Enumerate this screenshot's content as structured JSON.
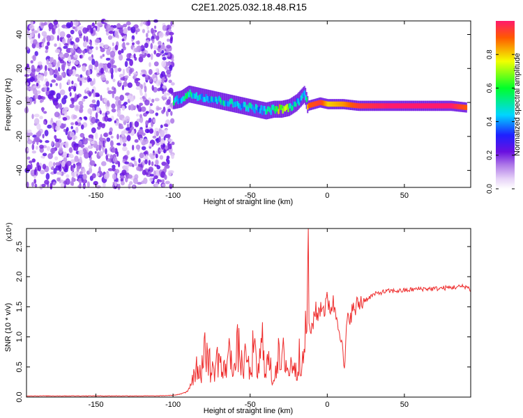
{
  "title": "C2E1.2025.032.18.48.R15",
  "colors": {
    "snr_line": "#ee2b2b",
    "frame": "#000000",
    "background": "#ffffff"
  },
  "chart_data": [
    {
      "type": "heatmap",
      "title": "C2E1.2025.032.18.48.R15",
      "xlabel": "Height of straight line (km)",
      "ylabel": "Frequency (Hz)",
      "xlim": [
        -195,
        93
      ],
      "ylim": [
        -50,
        48
      ],
      "xticks": [
        -150,
        -100,
        -50,
        0,
        50
      ],
      "yticks": [
        -40,
        -20,
        0,
        20,
        40
      ],
      "grid": false,
      "colorbar": {
        "label": "Normalized spectral amplitude",
        "range": [
          0.0,
          1.0
        ],
        "ticks": [
          0.0,
          0.2,
          0.4,
          0.6,
          0.8
        ],
        "colormap": "rainbow (white-violet-blue-cyan-green-yellow-red)"
      },
      "signal_track": [
        {
          "x": -100,
          "freq": 1,
          "amp": 0.5
        },
        {
          "x": -95,
          "freq": 2,
          "amp": 0.45
        },
        {
          "x": -90,
          "freq": 5,
          "amp": 0.55
        },
        {
          "x": -85,
          "freq": 4,
          "amp": 0.45
        },
        {
          "x": -80,
          "freq": 3,
          "amp": 0.5
        },
        {
          "x": -75,
          "freq": 2,
          "amp": 0.45
        },
        {
          "x": -70,
          "freq": 1,
          "amp": 0.5
        },
        {
          "x": -65,
          "freq": 0,
          "amp": 0.45
        },
        {
          "x": -60,
          "freq": -1,
          "amp": 0.5
        },
        {
          "x": -55,
          "freq": -2,
          "amp": 0.45
        },
        {
          "x": -50,
          "freq": -3,
          "amp": 0.5
        },
        {
          "x": -45,
          "freq": -4,
          "amp": 0.45
        },
        {
          "x": -40,
          "freq": -5,
          "amp": 0.5
        },
        {
          "x": -35,
          "freq": -4,
          "amp": 0.55
        },
        {
          "x": -30,
          "freq": -4,
          "amp": 0.85
        },
        {
          "x": -25,
          "freq": -3,
          "amp": 0.55
        },
        {
          "x": -20,
          "freq": 0,
          "amp": 0.45
        },
        {
          "x": -15,
          "freq": 5,
          "amp": 0.4
        },
        {
          "x": -13,
          "freq": -2,
          "amp": 0.9
        },
        {
          "x": -5,
          "freq": 0,
          "amp": 0.95
        },
        {
          "x": 0,
          "freq": -1,
          "amp": 0.8
        },
        {
          "x": 10,
          "freq": -1,
          "amp": 0.85
        },
        {
          "x": 20,
          "freq": -2,
          "amp": 0.95
        },
        {
          "x": 40,
          "freq": -2,
          "amp": 1.0
        },
        {
          "x": 60,
          "freq": -2,
          "amp": 1.0
        },
        {
          "x": 80,
          "freq": -2,
          "amp": 1.0
        },
        {
          "x": 90,
          "freq": -3,
          "amp": 0.9
        }
      ],
      "noise_region_x": [
        -195,
        -100
      ]
    },
    {
      "type": "line",
      "xlabel": "Height of straight line (km)",
      "ylabel": "SNR (10 * v/v)",
      "multiplier_label": "(x10⁴)",
      "xlim": [
        -195,
        93
      ],
      "ylim": [
        0,
        2.8
      ],
      "xticks": [
        -150,
        -100,
        -50,
        0,
        50
      ],
      "yticks": [
        0.0,
        0.5,
        1.0,
        1.5,
        2.0,
        2.5
      ],
      "grid": false,
      "series": [
        {
          "x": [
            -195,
            -150,
            -110,
            -100,
            -95,
            -92,
            -90,
            -88,
            -85,
            -82,
            -80,
            -78,
            -75,
            -72,
            -70,
            -68,
            -65,
            -62,
            -60,
            -58,
            -55,
            -52,
            -50,
            -48,
            -45,
            -42,
            -40,
            -38,
            -35,
            -32,
            -30,
            -28,
            -25,
            -22,
            -20,
            -18,
            -16,
            -14,
            -13,
            -12.5,
            -12,
            -11,
            -10,
            -9,
            -8,
            -6,
            -4,
            -2,
            0,
            2,
            4,
            6,
            8,
            10,
            11,
            12,
            13,
            15,
            18,
            20,
            25,
            30,
            35,
            40,
            50,
            60,
            70,
            80,
            90,
            93
          ],
          "y": [
            0.02,
            0.02,
            0.02,
            0.03,
            0.05,
            0.08,
            0.15,
            0.3,
            0.55,
            0.45,
            0.7,
            0.85,
            0.4,
            0.6,
            0.75,
            0.35,
            0.65,
            0.8,
            0.45,
            0.9,
            0.5,
            0.7,
            0.35,
            0.85,
            0.4,
            0.95,
            0.55,
            0.6,
            0.3,
            0.75,
            0.45,
            0.8,
            0.4,
            0.7,
            0.35,
            0.9,
            0.5,
            1.1,
            1.4,
            2.8,
            1.25,
            1.1,
            1.15,
            1.3,
            1.45,
            1.35,
            1.55,
            1.45,
            1.6,
            1.5,
            1.55,
            1.35,
            1.2,
            0.7,
            0.4,
            0.85,
            1.25,
            1.4,
            1.45,
            1.55,
            1.62,
            1.7,
            1.74,
            1.76,
            1.77,
            1.8,
            1.8,
            1.82,
            1.84,
            1.78
          ]
        }
      ]
    }
  ]
}
